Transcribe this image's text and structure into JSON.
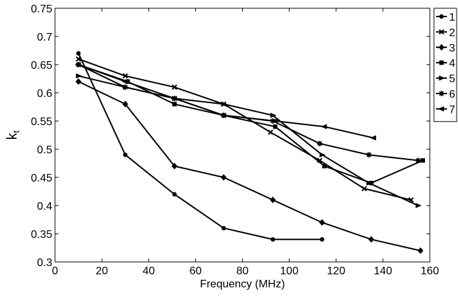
{
  "chart_data": {
    "type": "line",
    "title": "",
    "xlabel": "Frequency (MHz)",
    "ylabel": "k",
    "ylabel_subscript": "t",
    "xlim": [
      0,
      160
    ],
    "ylim": [
      0.3,
      0.75
    ],
    "x_ticks": [
      0,
      20,
      40,
      60,
      80,
      100,
      120,
      140,
      160
    ],
    "x_tick_labels": [
      "0",
      "20",
      "40",
      "60",
      "80",
      "100",
      "120",
      "140",
      "160"
    ],
    "y_ticks": [
      0.3,
      0.35,
      0.4,
      0.45,
      0.5,
      0.55,
      0.6,
      0.65,
      0.7,
      0.75
    ],
    "y_tick_labels": [
      "0.3",
      "0.35",
      "0.4",
      "0.45",
      "0.5",
      "0.55",
      "0.6",
      "0.65",
      "0.7",
      "0.75"
    ],
    "grid": false,
    "legend_position": "outside-top-right",
    "line_color": "#000000",
    "series": [
      {
        "name": "1",
        "marker": "circle",
        "x": [
          10,
          30,
          51,
          72,
          93,
          114
        ],
        "y": [
          0.67,
          0.49,
          0.42,
          0.36,
          0.34,
          0.34
        ]
      },
      {
        "name": "2",
        "marker": "x",
        "x": [
          10,
          30,
          51,
          72,
          92,
          113,
          132,
          152
        ],
        "y": [
          0.66,
          0.63,
          0.61,
          0.58,
          0.53,
          0.48,
          0.43,
          0.41
        ]
      },
      {
        "name": "3",
        "marker": "diamond",
        "x": [
          10,
          30,
          51,
          72,
          93,
          114,
          135,
          156
        ],
        "y": [
          0.62,
          0.58,
          0.47,
          0.45,
          0.41,
          0.37,
          0.34,
          0.32
        ]
      },
      {
        "name": "4",
        "marker": "square",
        "x": [
          10,
          31,
          51,
          72,
          94,
          115,
          135,
          157
        ],
        "y": [
          0.65,
          0.62,
          0.58,
          0.56,
          0.54,
          0.47,
          0.44,
          0.48
        ]
      },
      {
        "name": "5",
        "marker": "triangle-right",
        "x": [
          10,
          30,
          51,
          72,
          93,
          114,
          134,
          155
        ],
        "y": [
          0.63,
          0.61,
          0.59,
          0.58,
          0.56,
          0.49,
          0.44,
          0.4
        ]
      },
      {
        "name": "6",
        "marker": "star",
        "x": [
          10,
          30,
          51,
          72,
          93,
          113,
          134,
          155
        ],
        "y": [
          0.65,
          0.61,
          0.59,
          0.56,
          0.55,
          0.51,
          0.49,
          0.48
        ]
      },
      {
        "name": "7",
        "marker": "triangle-left",
        "x": [
          10,
          30,
          51,
          72,
          94,
          115,
          136
        ],
        "y": [
          0.65,
          0.62,
          0.59,
          0.56,
          0.55,
          0.54,
          0.52
        ]
      }
    ]
  }
}
